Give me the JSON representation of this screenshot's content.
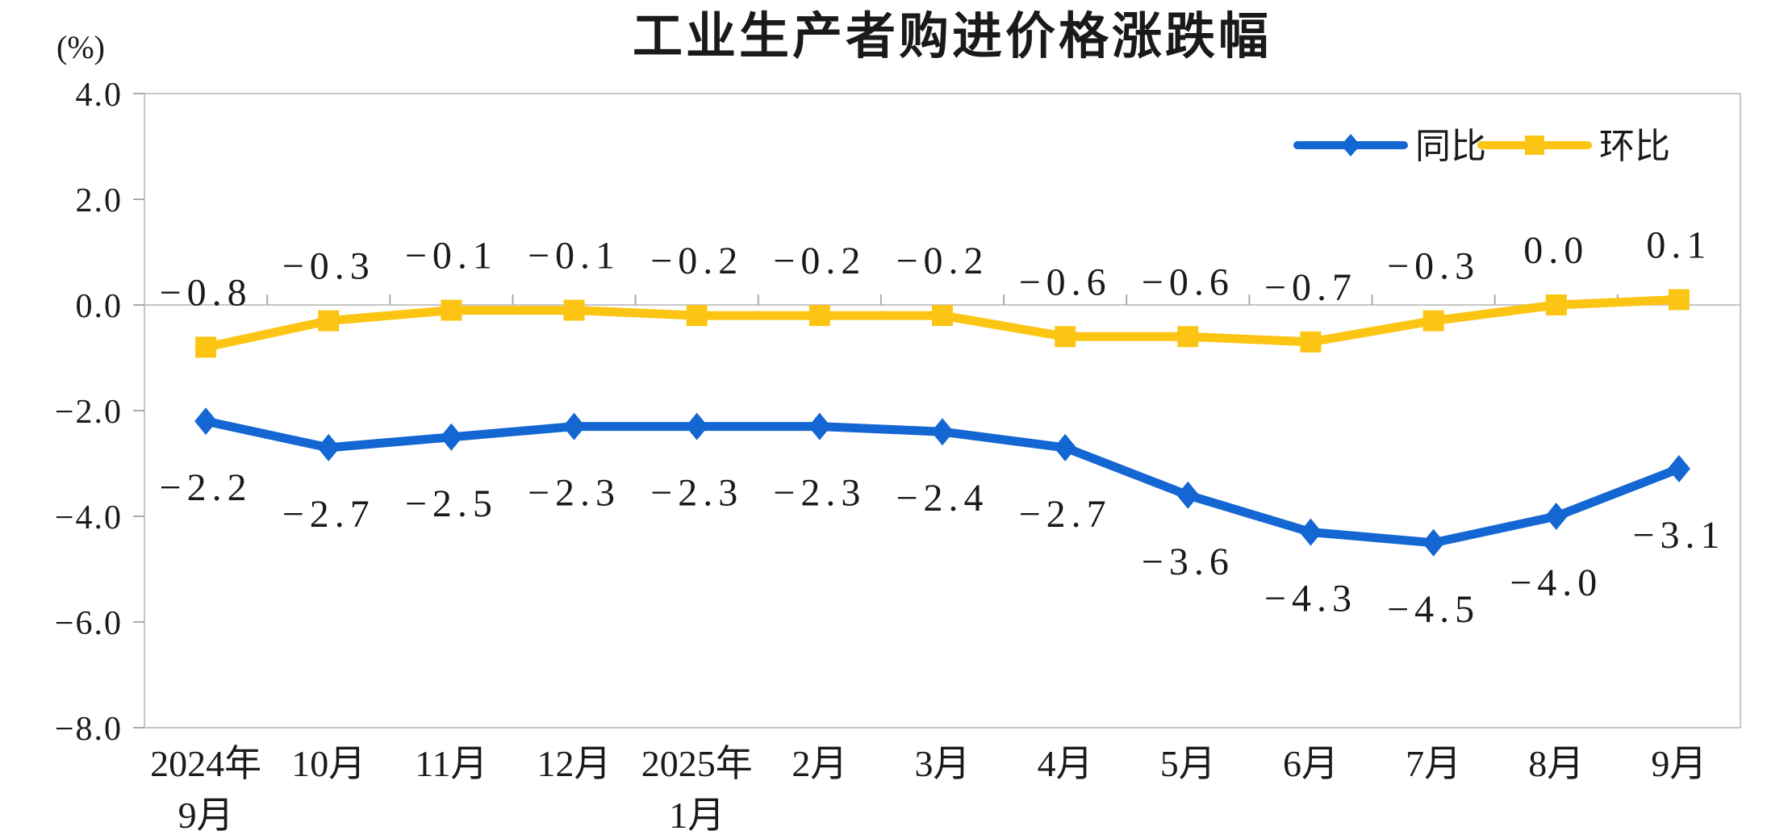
{
  "chart_data": {
    "type": "line",
    "title": "工业生产者购进价格涨跌幅",
    "unit_label": "(%)",
    "background": "#FFFFFF",
    "axis_color": "#C6C6C6",
    "tick_color": "#ABABAB",
    "text_color": "#1A1A1A",
    "grid": false,
    "legend_position": "top-right-inside",
    "x_categories": [
      {
        "lines": [
          "2024年",
          "9月"
        ]
      },
      {
        "lines": [
          "10月"
        ]
      },
      {
        "lines": [
          "11月"
        ]
      },
      {
        "lines": [
          "12月"
        ]
      },
      {
        "lines": [
          "2025年",
          "1月"
        ]
      },
      {
        "lines": [
          "2月"
        ]
      },
      {
        "lines": [
          "3月"
        ]
      },
      {
        "lines": [
          "4月"
        ]
      },
      {
        "lines": [
          "5月"
        ]
      },
      {
        "lines": [
          "6月"
        ]
      },
      {
        "lines": [
          "7月"
        ]
      },
      {
        "lines": [
          "8月"
        ]
      },
      {
        "lines": [
          "9月"
        ]
      }
    ],
    "y_axis": {
      "min": -8.0,
      "max": 4.0,
      "tick_interval": 2.0,
      "ticks": [
        {
          "label": "4.0",
          "value": 4
        },
        {
          "label": "2.0",
          "value": 2
        },
        {
          "label": "0.0",
          "value": 0
        },
        {
          "label": "-2.0",
          "value": -2
        },
        {
          "label": "-4.0",
          "value": -4
        },
        {
          "label": "-6.0",
          "value": -6
        },
        {
          "label": "-8.0",
          "value": -8
        }
      ]
    },
    "series": [
      {
        "name": "同比",
        "color": "#1467D2",
        "marker": "diamond",
        "label_side": "below",
        "values": [
          -2.2,
          -2.7,
          -2.5,
          -2.3,
          -2.3,
          -2.3,
          -2.4,
          -2.7,
          -3.6,
          -4.3,
          -4.5,
          -4.0,
          -3.1
        ],
        "labels": [
          "−2.2",
          "−2.7",
          "−2.5",
          "−2.3",
          "−2.3",
          "−2.3",
          "−2.4",
          "−2.7",
          "−3.6",
          "−4.3",
          "−4.5",
          "−4.0",
          "−3.1"
        ]
      },
      {
        "name": "环比",
        "color": "#FCC513",
        "marker": "square",
        "label_side": "above",
        "values": [
          -0.8,
          -0.3,
          -0.1,
          -0.1,
          -0.2,
          -0.2,
          -0.2,
          -0.6,
          -0.6,
          -0.7,
          -0.3,
          0.0,
          0.1
        ],
        "labels": [
          "−0.8",
          "−0.3",
          "−0.1",
          "−0.1",
          "−0.2",
          "−0.2",
          "−0.2",
          "−0.6",
          "−0.6",
          "−0.7",
          "−0.3",
          "0.0",
          "0.1"
        ]
      }
    ]
  }
}
